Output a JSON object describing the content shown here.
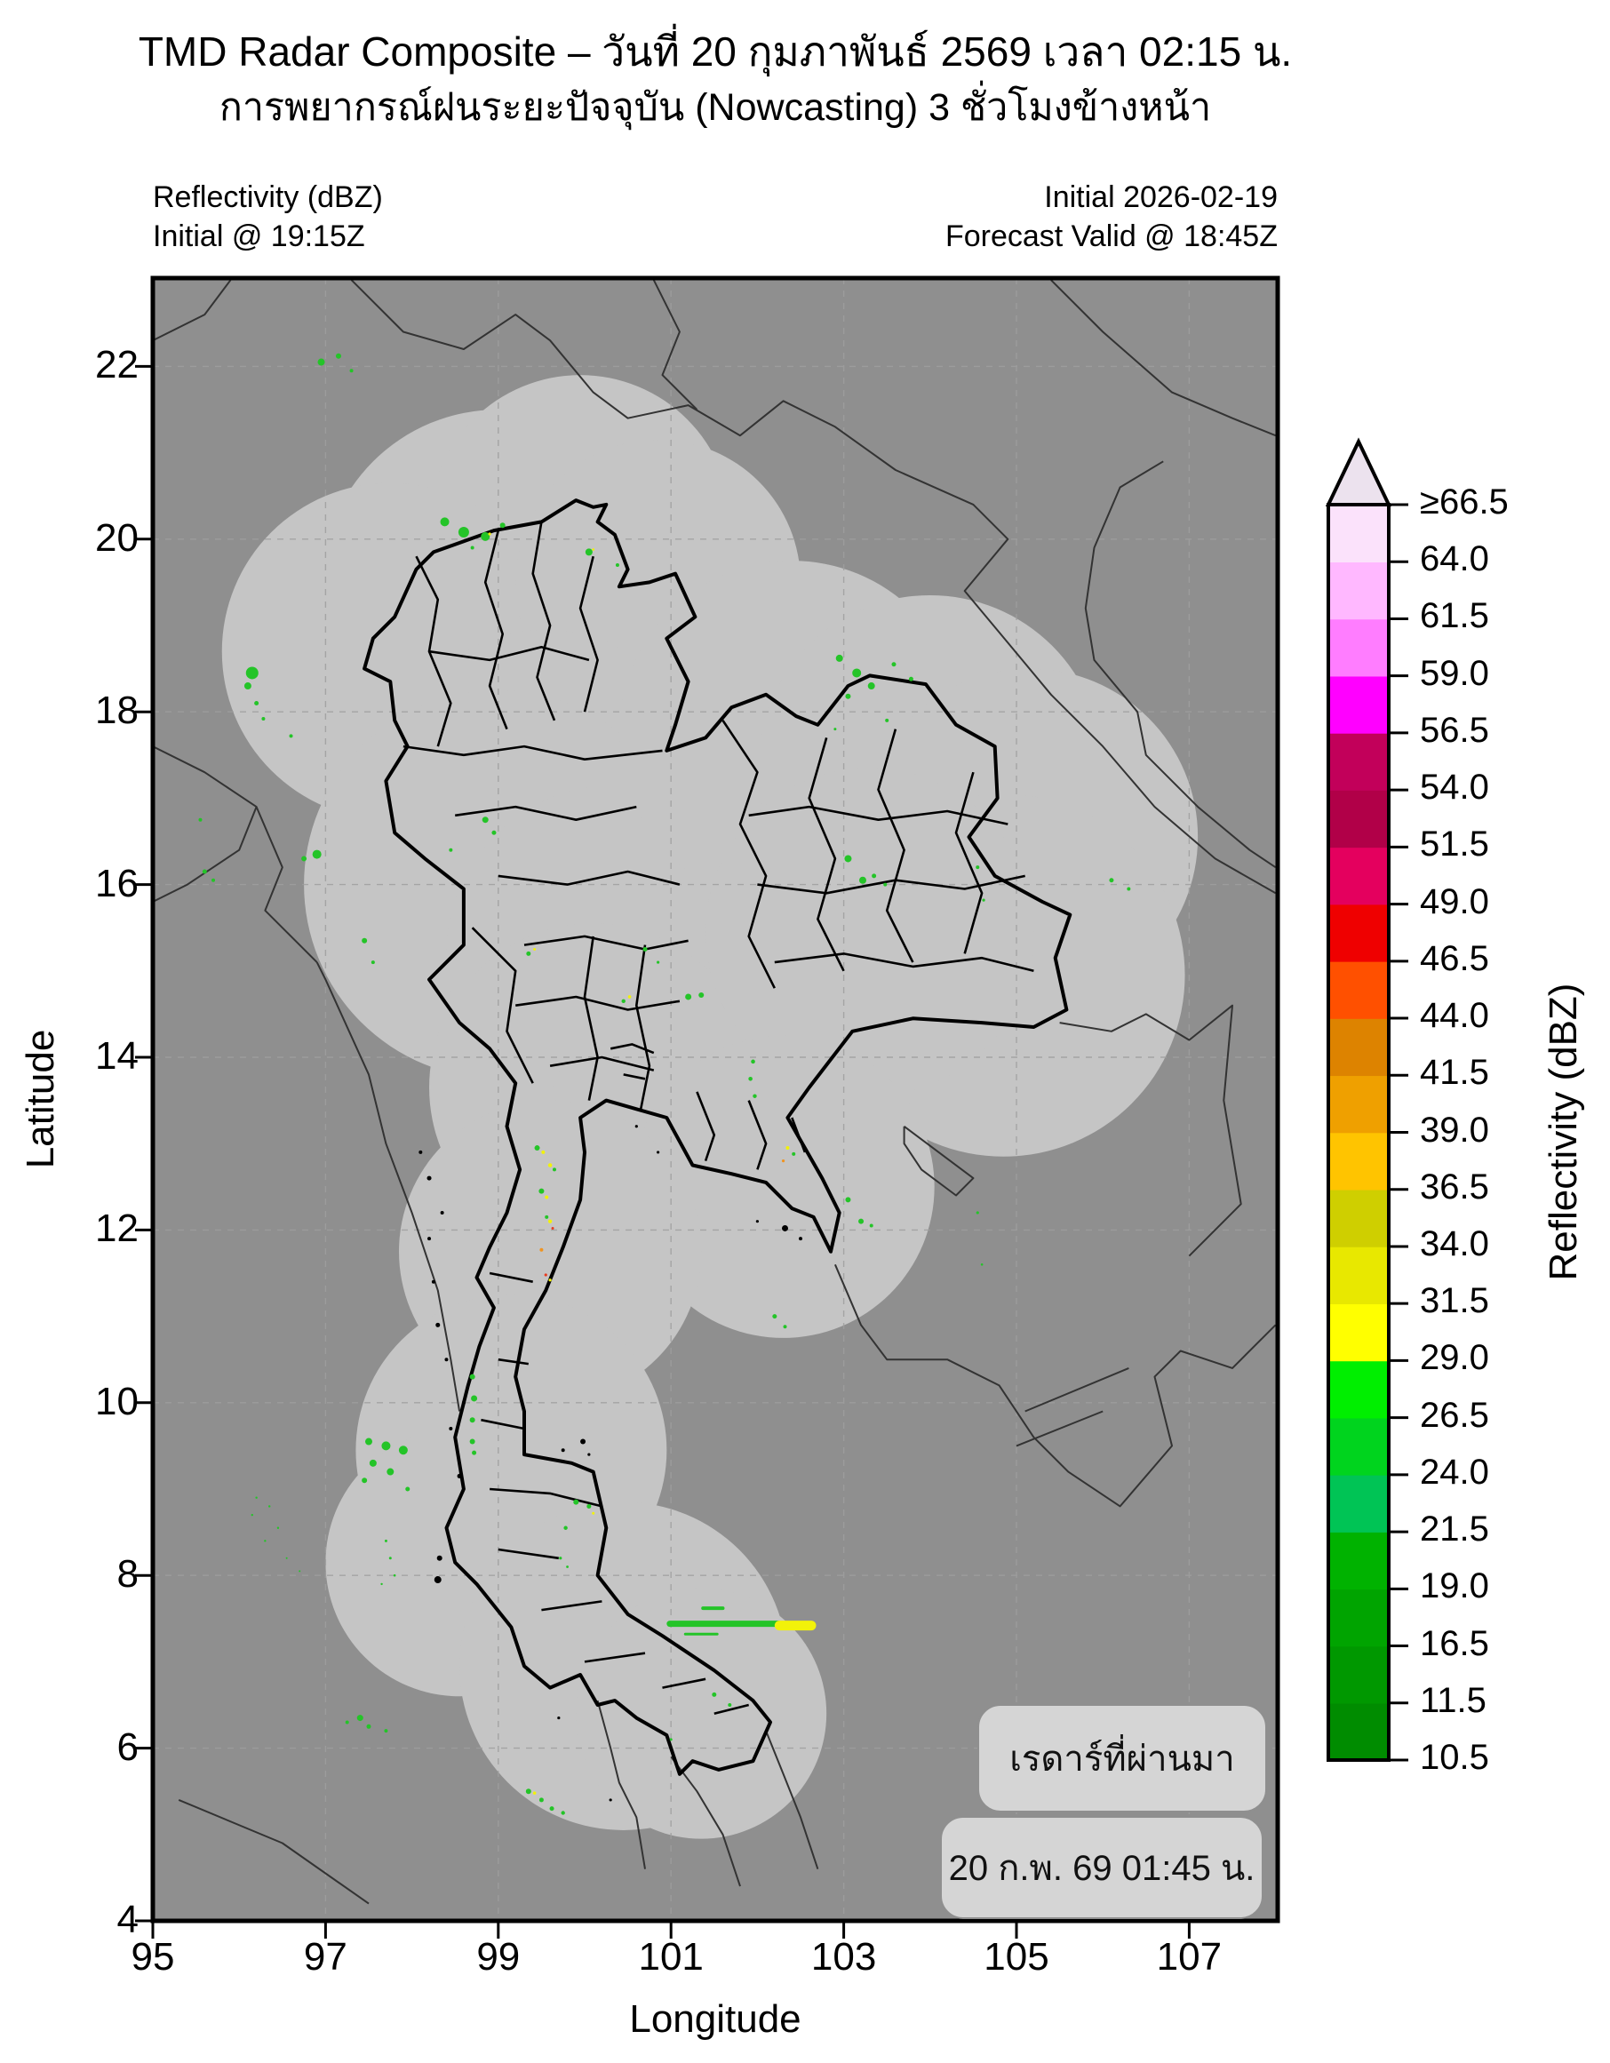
{
  "title": {
    "line1": "TMD Radar Composite – วันที่ 20 กุมภาพันธ์ 2569 เวลา 02:15 น.",
    "line2": "การพยากรณ์ฝนระยะปัจจุบัน (Nowcasting) 3 ชั่วโมงข้างหน้า"
  },
  "header": {
    "left_line1": "Reflectivity (dBZ)",
    "left_line2": "Initial @ 19:15Z",
    "right_line1": "Initial 2026-02-19",
    "right_line2": "Forecast Valid @ 18:45Z"
  },
  "axes": {
    "x": {
      "label": "Longitude",
      "ticks": [
        "95",
        "97",
        "99",
        "101",
        "103",
        "105",
        "107"
      ]
    },
    "y": {
      "label": "Latitude",
      "ticks_top_to_bottom": [
        "22",
        "20",
        "18",
        "16",
        "14",
        "12",
        "10",
        "8",
        "6",
        "4"
      ]
    }
  },
  "colorbar": {
    "label": "Reflectivity (dBZ)",
    "tick_labels_bottom_to_top": [
      "10.5",
      "11.5",
      "16.5",
      "19.0",
      "21.5",
      "24.0",
      "26.5",
      "29.0",
      "31.5",
      "34.0",
      "36.5",
      "39.0",
      "41.5",
      "44.0",
      "46.5",
      "49.0",
      "51.5",
      "54.0",
      "56.5",
      "59.0",
      "61.5",
      "64.0",
      "≥66.5"
    ],
    "segment_colors_bottom_to_top": [
      "#008c00",
      "#009800",
      "#00a400",
      "#00b200",
      "#00c455",
      "#00d41e",
      "#00ef00",
      "#ffff00",
      "#e8e800",
      "#cfcf00",
      "#ffc400",
      "#efa000",
      "#dd8300",
      "#ff5000",
      "#ef0000",
      "#e4005e",
      "#b10048",
      "#c2005a",
      "#ff00ff",
      "#ff7dff",
      "#ffb8ff",
      "#fbe2fb"
    ],
    "arrow_color": "#ece2ee"
  },
  "map_annotations": {
    "box1": "เรดาร์ที่ผ่านมา",
    "box2": "20 ก.พ. 69 01:45 น."
  },
  "map_colors": {
    "outside": "#8f8f8f",
    "coverage": "#c5c5c5",
    "grid": "#9f9f9f",
    "country_border": "#333333",
    "province_border": "#000000",
    "frame": "#000000"
  },
  "chart_data": {
    "type": "radar-composite-map",
    "lon_range": [
      95,
      108.0
    ],
    "lat_range": [
      4,
      23.0
    ],
    "dbz_boundaries": [
      10.5,
      11.5,
      16.5,
      19,
      21.5,
      24,
      26.5,
      29,
      31.5,
      34,
      36.5,
      39,
      41.5,
      44,
      46.5,
      49,
      51.5,
      54,
      56.5,
      59,
      61.5,
      64,
      66.5
    ],
    "palette": {
      "g": "#24c428",
      "y": "#f2f20a",
      "o": "#ef9421",
      "r": "#e83b20"
    },
    "echoes": [
      [
        96.95,
        22.05,
        4,
        "g"
      ],
      [
        97.15,
        22.12,
        3,
        "g"
      ],
      [
        97.3,
        21.95,
        2,
        "g"
      ],
      [
        98.38,
        20.2,
        5,
        "g"
      ],
      [
        98.6,
        20.08,
        6,
        "g"
      ],
      [
        98.85,
        20.03,
        5,
        "g"
      ],
      [
        98.9,
        20.06,
        1.6,
        "y"
      ],
      [
        99.05,
        20.16,
        3,
        "g"
      ],
      [
        98.7,
        19.9,
        2,
        "g"
      ],
      [
        100.05,
        19.85,
        4,
        "g"
      ],
      [
        100.1,
        19.88,
        1.3,
        "y"
      ],
      [
        100.38,
        19.7,
        2,
        "g"
      ],
      [
        96.15,
        18.45,
        7,
        "g"
      ],
      [
        96.1,
        18.3,
        4,
        "g"
      ],
      [
        96.2,
        18.1,
        2.5,
        "g"
      ],
      [
        96.28,
        17.92,
        2,
        "g"
      ],
      [
        96.6,
        17.72,
        2,
        "g"
      ],
      [
        95.55,
        16.75,
        2,
        "g"
      ],
      [
        95.6,
        16.15,
        2.5,
        "g"
      ],
      [
        95.7,
        16.05,
        2,
        "g"
      ],
      [
        96.9,
        16.35,
        5,
        "g"
      ],
      [
        96.75,
        16.3,
        3,
        "g"
      ],
      [
        98.85,
        16.75,
        3.5,
        "g"
      ],
      [
        98.95,
        16.6,
        2.5,
        "g"
      ],
      [
        98.45,
        16.4,
        2,
        "g"
      ],
      [
        97.45,
        15.35,
        3,
        "g"
      ],
      [
        97.55,
        15.1,
        2,
        "g"
      ],
      [
        102.95,
        18.62,
        4,
        "g"
      ],
      [
        103.15,
        18.45,
        5,
        "g"
      ],
      [
        103.32,
        18.3,
        4,
        "g"
      ],
      [
        103.05,
        18.18,
        3,
        "g"
      ],
      [
        103.58,
        18.55,
        2.5,
        "g"
      ],
      [
        103.78,
        18.38,
        2.5,
        "g"
      ],
      [
        103.5,
        17.9,
        2,
        "g"
      ],
      [
        102.9,
        17.8,
        1.5,
        "g"
      ],
      [
        106.1,
        16.05,
        2.5,
        "g"
      ],
      [
        106.3,
        15.95,
        2,
        "g"
      ],
      [
        103.05,
        16.3,
        4,
        "g"
      ],
      [
        103.22,
        16.05,
        4,
        "g"
      ],
      [
        103.35,
        16.1,
        2.5,
        "g"
      ],
      [
        103.48,
        16.0,
        2,
        "g"
      ],
      [
        104.55,
        16.2,
        2,
        "g"
      ],
      [
        104.62,
        15.82,
        1.6,
        "g"
      ],
      [
        100.7,
        15.25,
        2.5,
        "g"
      ],
      [
        100.85,
        15.1,
        1.6,
        "g"
      ],
      [
        101.2,
        14.7,
        3.5,
        "g"
      ],
      [
        101.35,
        14.72,
        3,
        "g"
      ],
      [
        99.35,
        15.2,
        2.5,
        "g"
      ],
      [
        99.42,
        15.25,
        1.5,
        "y"
      ],
      [
        100.45,
        14.65,
        2.2,
        "g"
      ],
      [
        100.52,
        14.7,
        1.8,
        "y"
      ],
      [
        99.45,
        12.95,
        3,
        "g"
      ],
      [
        99.52,
        12.9,
        2,
        "y"
      ],
      [
        99.6,
        12.75,
        2.3,
        "y"
      ],
      [
        99.65,
        12.7,
        2,
        "g"
      ],
      [
        99.5,
        12.45,
        3,
        "g"
      ],
      [
        99.56,
        12.38,
        2,
        "y"
      ],
      [
        99.6,
        12.1,
        2.2,
        "y"
      ],
      [
        99.63,
        12.02,
        1.5,
        "r"
      ],
      [
        99.56,
        12.15,
        2,
        "g"
      ],
      [
        99.5,
        11.77,
        2,
        "o"
      ],
      [
        99.55,
        11.48,
        1.6,
        "r"
      ],
      [
        99.6,
        11.42,
        1.6,
        "y"
      ],
      [
        101.95,
        13.95,
        2.3,
        "g"
      ],
      [
        101.92,
        13.75,
        2.3,
        "g"
      ],
      [
        101.97,
        13.55,
        2.2,
        "g"
      ],
      [
        102.35,
        12.95,
        2,
        "y"
      ],
      [
        102.42,
        12.88,
        2,
        "g"
      ],
      [
        102.3,
        12.8,
        1.6,
        "o"
      ],
      [
        103.05,
        12.35,
        3,
        "g"
      ],
      [
        103.2,
        12.1,
        3,
        "g"
      ],
      [
        103.32,
        12.05,
        2,
        "g"
      ],
      [
        104.55,
        12.2,
        1.6,
        "g"
      ],
      [
        104.6,
        11.6,
        1.3,
        "g"
      ],
      [
        102.2,
        11.0,
        2.5,
        "g"
      ],
      [
        102.32,
        10.88,
        2,
        "g"
      ],
      [
        98.7,
        10.3,
        3,
        "g"
      ],
      [
        98.72,
        10.05,
        3.5,
        "g"
      ],
      [
        98.7,
        9.8,
        3,
        "g"
      ],
      [
        98.7,
        9.55,
        3,
        "g"
      ],
      [
        98.72,
        9.42,
        2.5,
        "g"
      ],
      [
        97.5,
        9.55,
        4,
        "g"
      ],
      [
        97.7,
        9.5,
        5,
        "g"
      ],
      [
        97.9,
        9.45,
        5,
        "g"
      ],
      [
        97.55,
        9.3,
        4,
        "g"
      ],
      [
        97.75,
        9.2,
        4,
        "g"
      ],
      [
        97.45,
        9.1,
        3,
        "g"
      ],
      [
        97.95,
        9.0,
        2.5,
        "g"
      ],
      [
        97.7,
        8.4,
        1.5,
        "g"
      ],
      [
        97.75,
        8.2,
        1.5,
        "g"
      ],
      [
        97.8,
        8.0,
        1.3,
        "g"
      ],
      [
        97.65,
        7.9,
        1.2,
        "g"
      ],
      [
        96.2,
        8.9,
        1.2,
        "g"
      ],
      [
        96.35,
        8.8,
        1.2,
        "g"
      ],
      [
        96.15,
        8.7,
        1.2,
        "g"
      ],
      [
        96.45,
        8.55,
        1.2,
        "g"
      ],
      [
        96.3,
        8.4,
        1.2,
        "g"
      ],
      [
        96.55,
        8.2,
        1,
        "g"
      ],
      [
        96.7,
        8.05,
        1,
        "g"
      ],
      [
        99.9,
        8.85,
        3,
        "g"
      ],
      [
        100.05,
        8.8,
        2.5,
        "g"
      ],
      [
        100.1,
        8.72,
        1.5,
        "y"
      ],
      [
        99.78,
        8.55,
        2.2,
        "g"
      ],
      [
        99.72,
        8.2,
        1.6,
        "g"
      ],
      [
        99.8,
        8.1,
        1.4,
        "g"
      ],
      [
        101.5,
        6.62,
        2.5,
        "g"
      ],
      [
        101.68,
        6.5,
        2,
        "g"
      ],
      [
        101.0,
        6.1,
        1.5,
        "g"
      ],
      [
        99.35,
        5.5,
        3,
        "g"
      ],
      [
        99.42,
        5.48,
        1.8,
        "y"
      ],
      [
        99.5,
        5.4,
        2.5,
        "g"
      ],
      [
        99.62,
        5.3,
        2.5,
        "g"
      ],
      [
        99.75,
        5.25,
        2.2,
        "g"
      ],
      [
        97.4,
        6.35,
        3.5,
        "g"
      ],
      [
        97.5,
        6.25,
        2.5,
        "g"
      ],
      [
        97.7,
        6.2,
        2,
        "g"
      ],
      [
        97.25,
        6.3,
        2,
        "g"
      ]
    ],
    "streaks": [
      {
        "lat": 7.44,
        "lon1": 100.95,
        "lon2": 102.28,
        "h": 7,
        "c": "g"
      },
      {
        "lat": 7.42,
        "lon1": 102.2,
        "lon2": 102.68,
        "h": 11,
        "c": "y"
      },
      {
        "lat": 7.32,
        "lon1": 101.15,
        "lon2": 101.55,
        "h": 3,
        "c": "g"
      },
      {
        "lat": 7.62,
        "lon1": 101.35,
        "lon2": 101.62,
        "h": 4,
        "c": "g"
      }
    ]
  }
}
